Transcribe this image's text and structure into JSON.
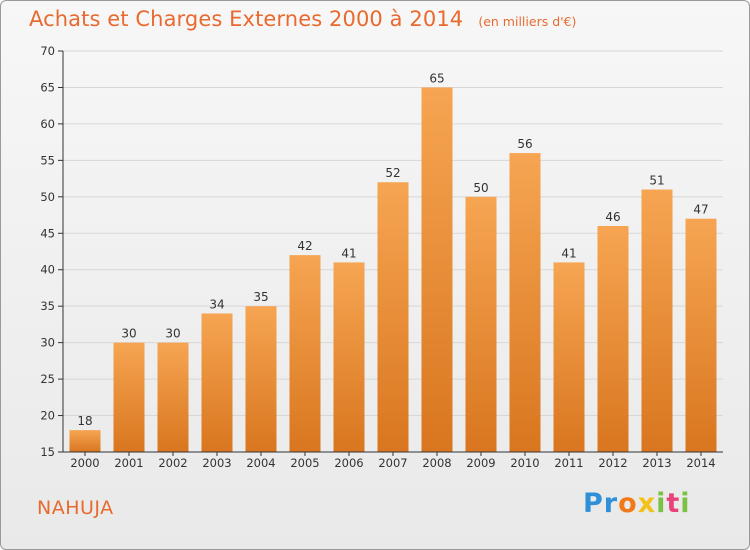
{
  "header": {
    "title": "Achats et Charges Externes 2000 à 2014",
    "unit": "(en milliers d'€)"
  },
  "footer": {
    "commune": "NAHUJA",
    "brand": [
      "P",
      "r",
      "o",
      "x",
      "i",
      "t",
      "i"
    ],
    "brand_colors": [
      "#2f8fd8",
      "#2f8fd8",
      "#f07a1a",
      "#f4c217",
      "#7cc242",
      "#e8447a",
      "#7cc242"
    ]
  },
  "colors": {
    "title": "#e96a2f",
    "bar_top": "#f6a552",
    "bar_bottom": "#d9761f",
    "axis": "#333333",
    "grid": "#d7d7d7"
  },
  "chart_data": {
    "type": "bar",
    "categories": [
      "2000",
      "2001",
      "2002",
      "2003",
      "2004",
      "2005",
      "2006",
      "2007",
      "2008",
      "2009",
      "2010",
      "2011",
      "2012",
      "2013",
      "2014"
    ],
    "values": [
      18,
      30,
      30,
      34,
      35,
      42,
      41,
      52,
      65,
      50,
      56,
      41,
      46,
      51,
      47
    ],
    "ylim": [
      15,
      70
    ],
    "yticks": [
      15,
      20,
      25,
      30,
      35,
      40,
      45,
      50,
      55,
      60,
      65,
      70
    ],
    "grid": true,
    "data_labels": true
  }
}
